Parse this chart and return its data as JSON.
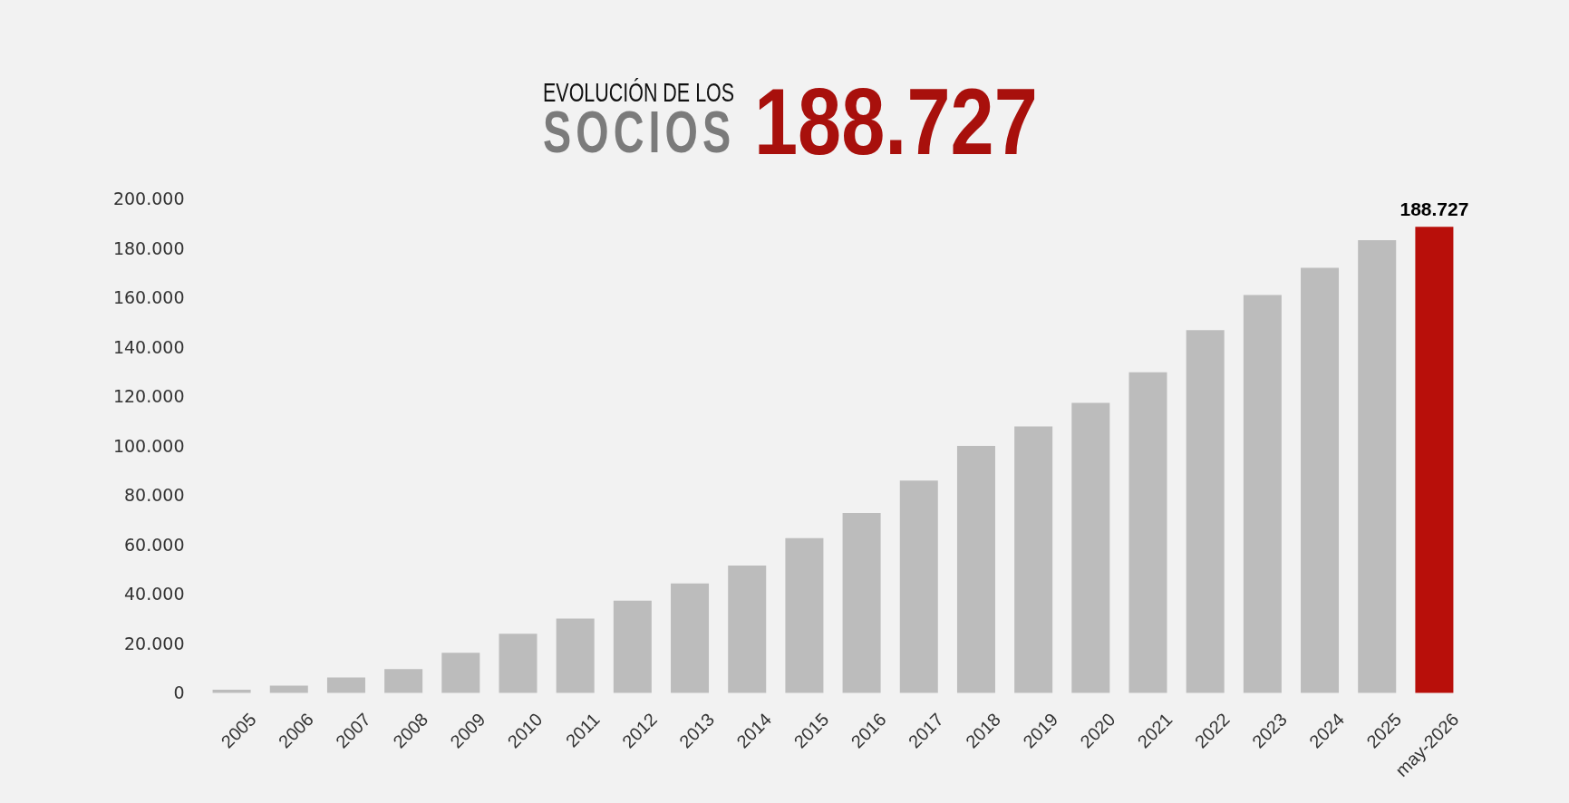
{
  "chart_data": {
    "type": "bar",
    "title": "EVOLUCIÓN DE LOS",
    "subtitle": "SOCIOS",
    "annotations": [
      "188.727"
    ],
    "categories": [
      "2005",
      "2006",
      "2007",
      "2008",
      "2009",
      "2010",
      "2011",
      "2012",
      "2013",
      "2014",
      "2015",
      "2016",
      "2017",
      "2018",
      "2019",
      "2020",
      "2021",
      "2022",
      "2023",
      "2024",
      "2025",
      "may-2026"
    ],
    "values": [
      1300,
      2900,
      6200,
      9600,
      16200,
      23900,
      30100,
      37300,
      44300,
      51600,
      62700,
      72800,
      86000,
      100000,
      107900,
      117400,
      129800,
      146900,
      161100,
      172100,
      183300,
      188727
    ],
    "colors": [
      "#bcbcbc",
      "#bcbcbc",
      "#bcbcbc",
      "#bcbcbc",
      "#bcbcbc",
      "#bcbcbc",
      "#bcbcbc",
      "#bcbcbc",
      "#bcbcbc",
      "#bcbcbc",
      "#bcbcbc",
      "#bcbcbc",
      "#bcbcbc",
      "#bcbcbc",
      "#bcbcbc",
      "#bcbcbc",
      "#bcbcbc",
      "#bcbcbc",
      "#bcbcbc",
      "#bcbcbc",
      "#bcbcbc",
      "#b80f0a"
    ],
    "value_labels": [
      null,
      null,
      null,
      null,
      null,
      null,
      null,
      null,
      null,
      null,
      null,
      null,
      null,
      null,
      null,
      null,
      null,
      null,
      null,
      null,
      null,
      "188.727"
    ],
    "ylim": [
      0,
      200000
    ],
    "yticks": [
      0,
      {
        "value": 20000,
        "label": "20.000"
      },
      {
        "value": 40000,
        "label": "40.000"
      },
      {
        "value": 60000,
        "label": "60.000"
      },
      {
        "value": 80000,
        "label": "80.000"
      },
      {
        "value": 100000,
        "label": "100.000"
      },
      {
        "value": 120000,
        "label": "120.000"
      },
      {
        "value": 140000,
        "label": "140.000"
      },
      {
        "value": 160000,
        "label": "160.000"
      },
      {
        "value": 180000,
        "label": "180.000"
      },
      {
        "value": 200000,
        "label": "200.000"
      }
    ]
  }
}
